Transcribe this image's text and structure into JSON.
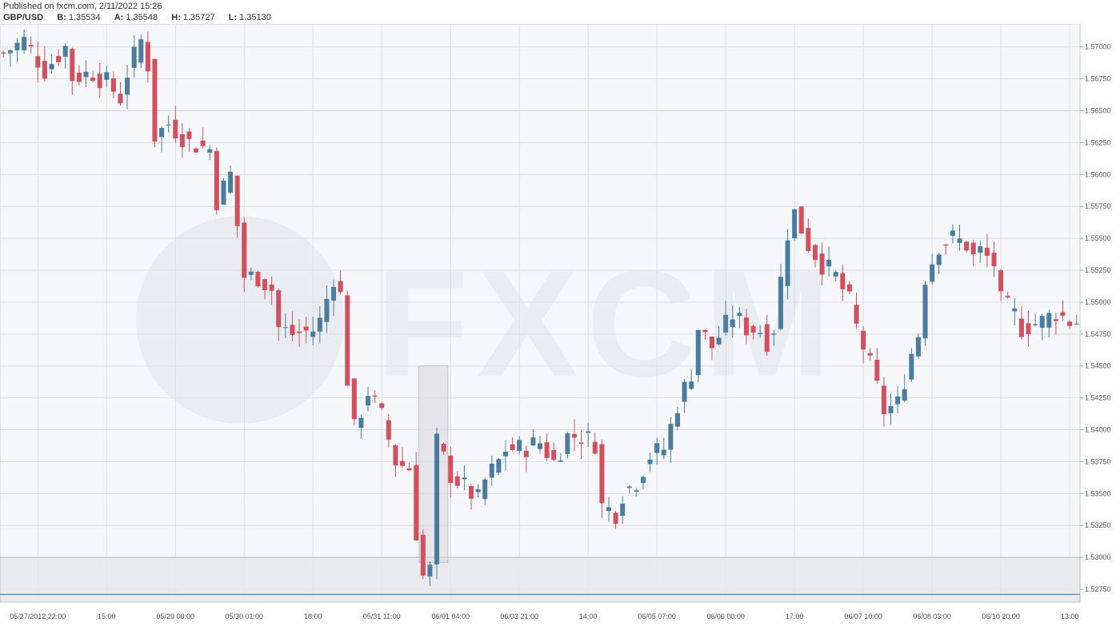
{
  "header": {
    "published": "Published on fxcm.com, 2/11/2022 15:26",
    "symbol": "GBP/USD",
    "bid_label": "B:",
    "bid": "1.35534",
    "ask_label": "A:",
    "ask": "1.35548",
    "high_label": "H:",
    "high": "1.35727",
    "low_label": "L:",
    "low": "1.35130"
  },
  "watermark": "FXCM",
  "colors": {
    "up": "#4a7ca0",
    "down": "#d0505e",
    "grid": "#dcdde2",
    "bg": "#f6f7fb"
  },
  "chart_data": {
    "type": "candlestick",
    "symbol": "GBP/USD",
    "ylim": [
      1.5265,
      1.5718
    ],
    "y_ticks": [
      1.5275,
      1.53,
      1.5325,
      1.535,
      1.5375,
      1.54,
      1.5425,
      1.545,
      1.5475,
      1.55,
      1.5525,
      1.555,
      1.5575,
      1.56,
      1.5625,
      1.565,
      1.5675,
      1.57
    ],
    "y_tick_labels": [
      "1.52750",
      "1.53000",
      "1.53250",
      "1.53500",
      "1.53750",
      "1.54000",
      "1.54250",
      "1.54500",
      "1.54750",
      "1.55000",
      "1.55250",
      "1.55500",
      "1.55750",
      "1.56000",
      "1.56250",
      "1.56500",
      "1.56750",
      "1.57000"
    ],
    "x_ticks": [
      {
        "index": 5,
        "label": "05/27/2012 22:00"
      },
      {
        "index": 15,
        "label": "15:00"
      },
      {
        "index": 25,
        "label": "05/29 08:00"
      },
      {
        "index": 35,
        "label": "05/30 01:00"
      },
      {
        "index": 45,
        "label": "18:00"
      },
      {
        "index": 55,
        "label": "05/31 11:00"
      },
      {
        "index": 65,
        "label": "06/01 04:00"
      },
      {
        "index": 75,
        "label": "06/03 21:00"
      },
      {
        "index": 85,
        "label": "14:00"
      },
      {
        "index": 95,
        "label": "06/05 07:00"
      },
      {
        "index": 105,
        "label": "06/06 00:00"
      },
      {
        "index": 115,
        "label": "17:00"
      },
      {
        "index": 125,
        "label": "06/07 10:00"
      },
      {
        "index": 135,
        "label": "06/08 03:00"
      },
      {
        "index": 145,
        "label": "06/10 20:00"
      },
      {
        "index": 155,
        "label": "13:00"
      }
    ],
    "highlight_candle_range": [
      61,
      64
    ],
    "shaded_y_range": [
      1.5265,
      1.53
    ],
    "trendline_y": 1.5271,
    "close_waypoints": [
      [
        0,
        1.5695
      ],
      [
        3,
        1.5705
      ],
      [
        6,
        1.5682
      ],
      [
        9,
        1.57
      ],
      [
        10,
        1.5676
      ],
      [
        13,
        1.568
      ],
      [
        15,
        1.5672
      ],
      [
        17,
        1.566
      ],
      [
        18,
        1.568
      ],
      [
        20,
        1.5705
      ],
      [
        21,
        1.5686
      ],
      [
        22,
        1.563
      ],
      [
        24,
        1.564
      ],
      [
        27,
        1.5625
      ],
      [
        30,
        1.562
      ],
      [
        31,
        1.558
      ],
      [
        33,
        1.56
      ],
      [
        35,
        1.552
      ],
      [
        37,
        1.552
      ],
      [
        39,
        1.551
      ],
      [
        40,
        1.548
      ],
      [
        42,
        1.5475
      ],
      [
        45,
        1.5478
      ],
      [
        46,
        1.5485
      ],
      [
        48,
        1.552
      ],
      [
        49,
        1.5505
      ],
      [
        50,
        1.544
      ],
      [
        51,
        1.54
      ],
      [
        53,
        1.543
      ],
      [
        55,
        1.541
      ],
      [
        57,
        1.5375
      ],
      [
        59,
        1.537
      ],
      [
        60,
        1.532
      ],
      [
        61,
        1.5285
      ],
      [
        62,
        1.529
      ],
      [
        63,
        1.539
      ],
      [
        65,
        1.5365
      ],
      [
        67,
        1.5355
      ],
      [
        69,
        1.5345
      ],
      [
        70,
        1.536
      ],
      [
        72,
        1.5375
      ],
      [
        73,
        1.5385
      ],
      [
        75,
        1.5385
      ],
      [
        78,
        1.539
      ],
      [
        80,
        1.5375
      ],
      [
        82,
        1.5395
      ],
      [
        84,
        1.5395
      ],
      [
        86,
        1.539
      ],
      [
        87,
        1.534
      ],
      [
        89,
        1.5335
      ],
      [
        90,
        1.535
      ],
      [
        92,
        1.536
      ],
      [
        94,
        1.538
      ],
      [
        96,
        1.5385
      ],
      [
        98,
        1.542
      ],
      [
        100,
        1.5445
      ],
      [
        101,
        1.548
      ],
      [
        103,
        1.5465
      ],
      [
        106,
        1.549
      ],
      [
        108,
        1.548
      ],
      [
        110,
        1.5478
      ],
      [
        111,
        1.547
      ],
      [
        112,
        1.548
      ],
      [
        114,
        1.5555
      ],
      [
        115,
        1.557
      ],
      [
        117,
        1.5545
      ],
      [
        119,
        1.553
      ],
      [
        121,
        1.552
      ],
      [
        123,
        1.55
      ],
      [
        124,
        1.548
      ],
      [
        126,
        1.545
      ],
      [
        128,
        1.5415
      ],
      [
        130,
        1.542
      ],
      [
        132,
        1.546
      ],
      [
        133,
        1.5475
      ],
      [
        134,
        1.552
      ],
      [
        136,
        1.5545
      ],
      [
        138,
        1.555
      ],
      [
        140,
        1.5545
      ],
      [
        141,
        1.5535
      ],
      [
        142,
        1.554
      ],
      [
        144,
        1.553
      ],
      [
        145,
        1.55
      ],
      [
        147,
        1.549
      ],
      [
        148,
        1.548
      ],
      [
        151,
        1.5485
      ],
      [
        153,
        1.5492
      ],
      [
        155,
        1.5485
      ]
    ]
  }
}
